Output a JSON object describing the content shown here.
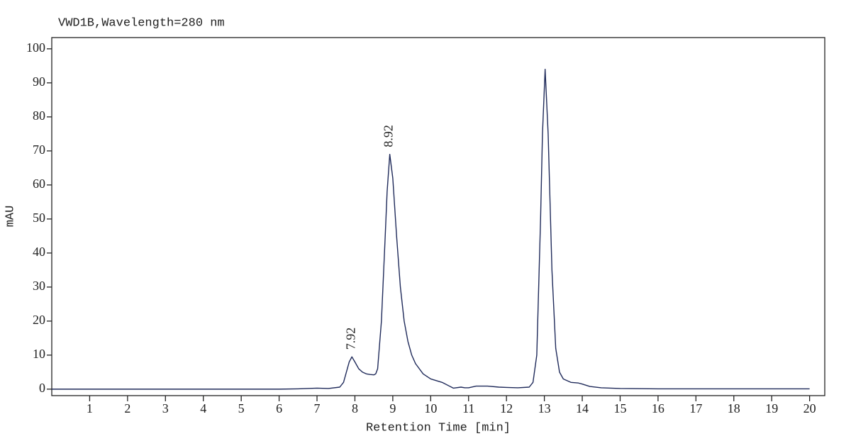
{
  "chart_data": {
    "type": "line",
    "title": "VWD1B,Wavelength=280 nm",
    "xlabel": "Retention Time [min]",
    "ylabel": "mAU",
    "xlim": [
      0,
      20.4
    ],
    "ylim": [
      -1.9,
      103.3
    ],
    "xticks": [
      1,
      2,
      3,
      4,
      5,
      6,
      7,
      8,
      9,
      10,
      11,
      12,
      13,
      14,
      15,
      16,
      17,
      18,
      19,
      20
    ],
    "yticks": [
      0,
      10,
      20,
      30,
      40,
      50,
      60,
      70,
      80,
      90,
      100
    ],
    "peak_labels": [
      7.92,
      8.92
    ],
    "series": [
      {
        "color": "#1f2a5a",
        "x": [
          0,
          1,
          2,
          3,
          4,
          5,
          6,
          6.5,
          7,
          7.3,
          7.6,
          7.7,
          7.8,
          7.85,
          7.92,
          8.0,
          8.1,
          8.2,
          8.3,
          8.4,
          8.5,
          8.55,
          8.6,
          8.7,
          8.8,
          8.85,
          8.92,
          9.0,
          9.1,
          9.2,
          9.3,
          9.4,
          9.5,
          9.6,
          9.8,
          10.0,
          10.3,
          10.6,
          10.8,
          10.9,
          11.0,
          11.2,
          11.5,
          11.8,
          12.0,
          12.3,
          12.6,
          12.7,
          12.8,
          12.9,
          12.95,
          13.02,
          13.1,
          13.15,
          13.2,
          13.3,
          13.4,
          13.5,
          13.7,
          13.9,
          14.0,
          14.2,
          14.5,
          15,
          16,
          17,
          18,
          19,
          20
        ],
        "values": [
          0,
          0,
          0,
          0,
          0,
          0,
          0,
          0.1,
          0.3,
          0.2,
          0.6,
          2,
          6,
          8,
          9.5,
          8,
          6,
          5,
          4.5,
          4.3,
          4.2,
          4.5,
          6,
          20,
          45,
          58,
          69,
          62,
          45,
          30,
          20,
          14,
          10,
          7.5,
          4.5,
          3,
          2,
          0.3,
          0.6,
          0.4,
          0.4,
          0.9,
          0.9,
          0.6,
          0.5,
          0.4,
          0.6,
          2,
          10,
          50,
          75,
          94,
          75,
          55,
          35,
          12,
          5,
          3,
          2,
          1.8,
          1.5,
          0.8,
          0.4,
          0.2,
          0.1,
          0.1,
          0.1,
          0.1,
          0.1
        ]
      }
    ]
  }
}
